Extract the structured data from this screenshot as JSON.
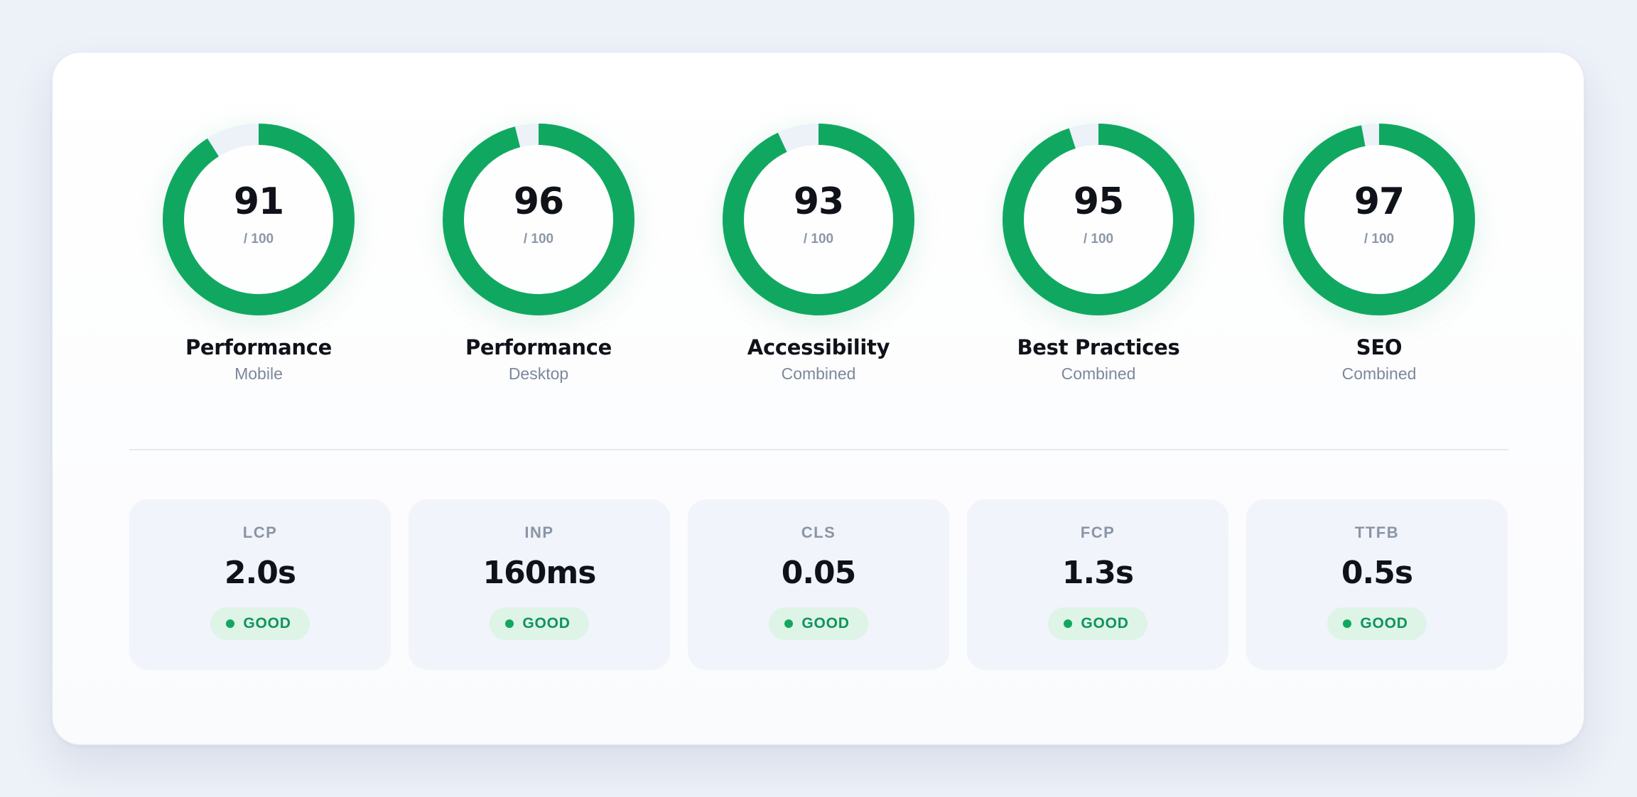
{
  "colors": {
    "accent": "#10a860",
    "track": "#edf1f8",
    "badge_bg": "#ddf4e7",
    "badge_text": "#10935a"
  },
  "scores": [
    {
      "score": "91",
      "value": 91,
      "max": "/ 100",
      "title": "Performance",
      "subtitle": "Mobile"
    },
    {
      "score": "96",
      "value": 96,
      "max": "/ 100",
      "title": "Performance",
      "subtitle": "Desktop"
    },
    {
      "score": "93",
      "value": 93,
      "max": "/ 100",
      "title": "Accessibility",
      "subtitle": "Combined"
    },
    {
      "score": "95",
      "value": 95,
      "max": "/ 100",
      "title": "Best Practices",
      "subtitle": "Combined"
    },
    {
      "score": "97",
      "value": 97,
      "max": "/ 100",
      "title": "SEO",
      "subtitle": "Combined"
    }
  ],
  "metrics": [
    {
      "label": "LCP",
      "value": "2.0s",
      "status": "GOOD"
    },
    {
      "label": "INP",
      "value": "160ms",
      "status": "GOOD"
    },
    {
      "label": "CLS",
      "value": "0.05",
      "status": "GOOD"
    },
    {
      "label": "FCP",
      "value": "1.3s",
      "status": "GOOD"
    },
    {
      "label": "TTFB",
      "value": "0.5s",
      "status": "GOOD"
    }
  ]
}
